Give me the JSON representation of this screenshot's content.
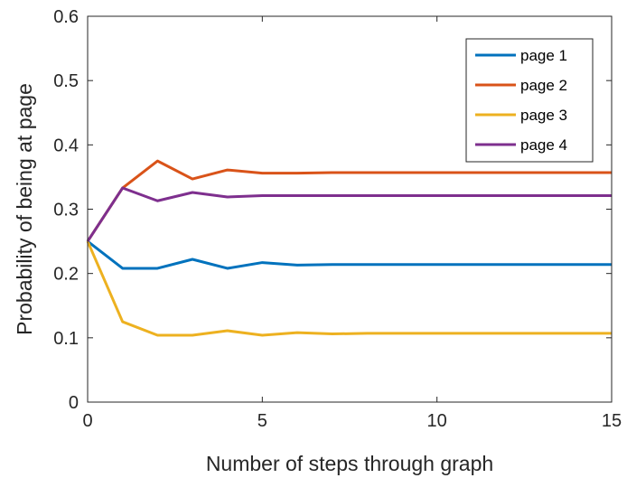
{
  "chart_data": {
    "type": "line",
    "xlabel": "Number of steps through graph",
    "ylabel": "Probability of being at page",
    "xlim": [
      0,
      15
    ],
    "ylim": [
      0,
      0.6
    ],
    "xticks": [
      "0",
      "5",
      "10",
      "15"
    ],
    "xtick_values": [
      0,
      5,
      10,
      15
    ],
    "yticks": [
      "0",
      "0.1",
      "0.2",
      "0.3",
      "0.4",
      "0.5",
      "0.6"
    ],
    "ytick_values": [
      0,
      0.1,
      0.2,
      0.3,
      0.4,
      0.5,
      0.6
    ],
    "grid": false,
    "legend_position": "top-right",
    "x": [
      0,
      1,
      2,
      3,
      4,
      5,
      6,
      7,
      8,
      9,
      10,
      11,
      12,
      13,
      14,
      15
    ],
    "series": [
      {
        "name": "page 1",
        "color": "#0072BD",
        "values": [
          0.25,
          0.208,
          0.208,
          0.222,
          0.208,
          0.217,
          0.213,
          0.214,
          0.214,
          0.214,
          0.214,
          0.214,
          0.214,
          0.214,
          0.214,
          0.214
        ]
      },
      {
        "name": "page 2",
        "color": "#D95319",
        "values": [
          0.25,
          0.333,
          0.375,
          0.347,
          0.361,
          0.356,
          0.356,
          0.357,
          0.357,
          0.357,
          0.357,
          0.357,
          0.357,
          0.357,
          0.357,
          0.357
        ]
      },
      {
        "name": "page 3",
        "color": "#EDB120",
        "values": [
          0.25,
          0.125,
          0.104,
          0.104,
          0.111,
          0.104,
          0.108,
          0.106,
          0.107,
          0.107,
          0.107,
          0.107,
          0.107,
          0.107,
          0.107,
          0.107
        ]
      },
      {
        "name": "page 4",
        "color": "#7E2F8E",
        "values": [
          0.25,
          0.333,
          0.313,
          0.326,
          0.319,
          0.321,
          0.321,
          0.321,
          0.321,
          0.321,
          0.321,
          0.321,
          0.321,
          0.321,
          0.321,
          0.321
        ]
      }
    ]
  }
}
